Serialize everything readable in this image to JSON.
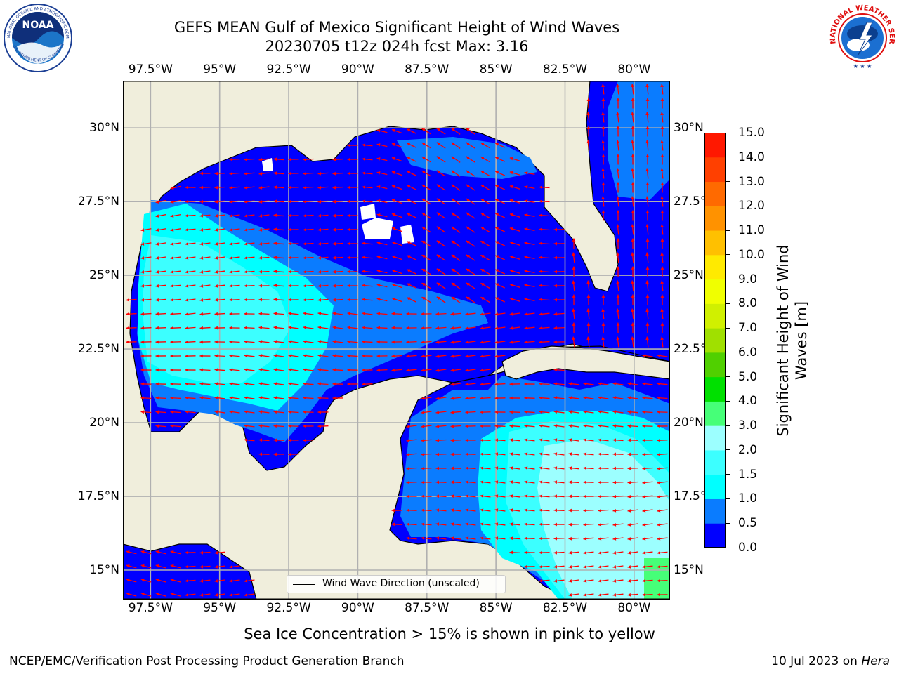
{
  "title": {
    "line1": "GEFS MEAN Gulf of Mexico Significant Height of Wind Waves",
    "line2": "20230705 t12z 024h fcst   Max: 3.16"
  },
  "logos": {
    "left": {
      "name": "NOAA",
      "ring_text": "NATIONAL OCEANIC AND ATMOSPHERIC ADMINISTRATION",
      "ring_bottom": "U.S. DEPARTMENT OF COMMERCE"
    },
    "right": {
      "ring_text": "NATIONAL WEATHER SERVICE"
    }
  },
  "map": {
    "lon_range": [
      -98.5,
      -78.7
    ],
    "lat_range": [
      14.0,
      31.6
    ],
    "x_ticks": [
      "97.5°W",
      "95°W",
      "92.5°W",
      "90°W",
      "87.5°W",
      "85°W",
      "82.5°W",
      "80°W"
    ],
    "x_tick_values": [
      -97.5,
      -95,
      -92.5,
      -90,
      -87.5,
      -85,
      -82.5,
      -80
    ],
    "y_ticks": [
      "30°N",
      "27.5°N",
      "25°N",
      "22.5°N",
      "20°N",
      "17.5°N",
      "15°N"
    ],
    "y_tick_values": [
      30,
      27.5,
      25,
      22.5,
      20,
      17.5,
      15
    ],
    "grid": true,
    "colors": {
      "land": "#f0eedc",
      "coast": "#000000",
      "arrows": "#ff0000",
      "grid": "#b0b0b0"
    },
    "max_value": 3.16
  },
  "colorbar": {
    "label": "Significant Height of Wind Waves [m]",
    "ticks": [
      "0.0",
      "0.5",
      "1.0",
      "1.5",
      "2.0",
      "3.0",
      "4.0",
      "5.0",
      "6.0",
      "7.0",
      "8.0",
      "9.0",
      "10.0",
      "11.0",
      "12.0",
      "13.0",
      "14.0",
      "15.0"
    ],
    "colors": [
      "#0000ff",
      "#0a7cff",
      "#00ffff",
      "#3cffff",
      "#9cffff",
      "#46ff78",
      "#00e000",
      "#50d000",
      "#a0e000",
      "#d0f000",
      "#f0ff00",
      "#ffea00",
      "#ffc000",
      "#ff9200",
      "#ff6a00",
      "#ff4000",
      "#ff1800"
    ]
  },
  "legend": {
    "label": "Wind Wave Direction (unscaled)"
  },
  "bottom_note": "Sea Ice Concentration > 15% is shown in pink to yellow",
  "footer": {
    "left": "NCEP/EMC/Verification Post Processing Product Generation Branch",
    "right_date": "10 Jul 2023 on ",
    "right_host": "Hera"
  }
}
